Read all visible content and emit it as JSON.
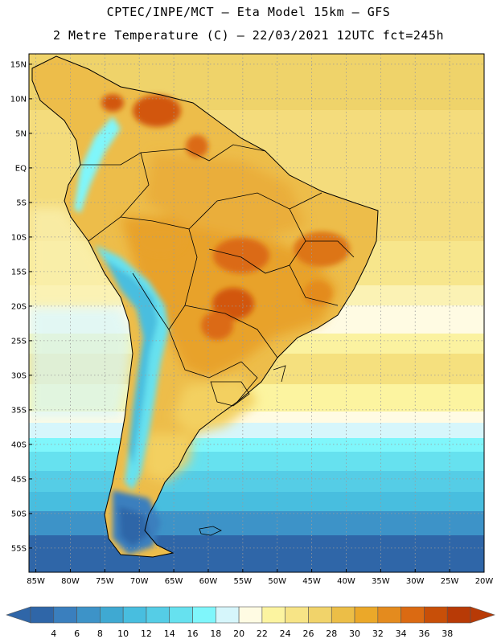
{
  "header": {
    "title_line1": "CPTEC/INPE/MCT –   Eta Model 15km – GFS",
    "title_line2": "2 Metre Temperature (C) – 22/03/2021 12UTC fct=245h"
  },
  "map": {
    "lon_range": [
      -86,
      -20
    ],
    "lat_range": [
      -58.5,
      16.5
    ],
    "lat_ticks": [
      {
        "v": 15,
        "label": "15N"
      },
      {
        "v": 10,
        "label": "10N"
      },
      {
        "v": 5,
        "label": "5N"
      },
      {
        "v": 0,
        "label": "EQ"
      },
      {
        "v": -5,
        "label": "5S"
      },
      {
        "v": -10,
        "label": "10S"
      },
      {
        "v": -15,
        "label": "15S"
      },
      {
        "v": -20,
        "label": "20S"
      },
      {
        "v": -25,
        "label": "25S"
      },
      {
        "v": -30,
        "label": "30S"
      },
      {
        "v": -35,
        "label": "35S"
      },
      {
        "v": -40,
        "label": "40S"
      },
      {
        "v": -45,
        "label": "45S"
      },
      {
        "v": -50,
        "label": "50S"
      },
      {
        "v": -55,
        "label": "55S"
      }
    ],
    "lon_ticks": [
      {
        "v": -85,
        "label": "85W"
      },
      {
        "v": -80,
        "label": "80W"
      },
      {
        "v": -75,
        "label": "75W"
      },
      {
        "v": -70,
        "label": "70W"
      },
      {
        "v": -65,
        "label": "65W"
      },
      {
        "v": -60,
        "label": "60W"
      },
      {
        "v": -55,
        "label": "55W"
      },
      {
        "v": -50,
        "label": "50W"
      },
      {
        "v": -45,
        "label": "45W"
      },
      {
        "v": -40,
        "label": "40W"
      },
      {
        "v": -35,
        "label": "35W"
      },
      {
        "v": -30,
        "label": "30W"
      },
      {
        "v": -25,
        "label": "25W"
      },
      {
        "v": -20,
        "label": "20W"
      }
    ]
  },
  "colorbar": {
    "labels": [
      "4",
      "6",
      "8",
      "10",
      "12",
      "14",
      "16",
      "18",
      "20",
      "22",
      "24",
      "26",
      "28",
      "30",
      "32",
      "34",
      "36",
      "38"
    ],
    "colors": [
      "#2f66a8",
      "#3a7fbe",
      "#3d93c8",
      "#3fa9d2",
      "#48bedf",
      "#55cde6",
      "#66e1ef",
      "#7ff6fb",
      "#d6f6fb",
      "#fffbe3",
      "#fcf4a0",
      "#f7e486",
      "#f1d36a",
      "#ecbe47",
      "#eba829",
      "#e48b1e",
      "#db6a12",
      "#c84f08",
      "#b83a06"
    ],
    "left_arrow_color": "#2f66a8",
    "right_arrow_color": "#b83a06"
  }
}
